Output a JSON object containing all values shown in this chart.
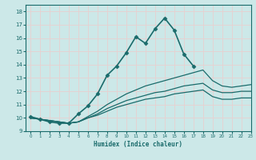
{
  "xlabel": "Humidex (Indice chaleur)",
  "bg_color": "#cce8e8",
  "grid_color": "#e8d0d0",
  "line_color": "#1a6b6b",
  "xlim": [
    -0.5,
    23
  ],
  "ylim": [
    9,
    18.5
  ],
  "xticks": [
    0,
    1,
    2,
    3,
    4,
    5,
    6,
    7,
    8,
    9,
    10,
    11,
    12,
    13,
    14,
    15,
    16,
    17,
    18,
    19,
    20,
    21,
    22,
    23
  ],
  "yticks": [
    9,
    10,
    11,
    12,
    13,
    14,
    15,
    16,
    17,
    18
  ],
  "series": [
    {
      "x": [
        0,
        1,
        2,
        3,
        4,
        5,
        6,
        7,
        8,
        9,
        10,
        11,
        12,
        13,
        14,
        15,
        16,
        17
      ],
      "y": [
        10.1,
        9.9,
        9.7,
        9.6,
        9.6,
        10.3,
        10.9,
        11.8,
        13.2,
        13.9,
        14.9,
        16.1,
        15.6,
        16.7,
        17.5,
        16.6,
        14.8,
        13.9
      ],
      "marker": "D",
      "markersize": 2.5,
      "linewidth": 1.2
    },
    {
      "x": [
        0,
        3,
        4,
        5,
        6,
        7,
        8,
        9,
        10,
        11,
        12,
        13,
        14,
        15,
        16,
        17,
        18,
        19,
        20,
        21,
        22,
        23
      ],
      "y": [
        10.0,
        9.7,
        9.6,
        9.7,
        10.1,
        10.5,
        11.0,
        11.4,
        11.8,
        12.1,
        12.4,
        12.6,
        12.8,
        13.0,
        13.2,
        13.4,
        13.6,
        12.8,
        12.4,
        12.3,
        12.4,
        12.5
      ],
      "marker": null,
      "markersize": 0,
      "linewidth": 0.9
    },
    {
      "x": [
        0,
        3,
        4,
        5,
        6,
        7,
        8,
        9,
        10,
        11,
        12,
        13,
        14,
        15,
        16,
        17,
        18,
        19,
        20,
        21,
        22,
        23
      ],
      "y": [
        10.0,
        9.7,
        9.6,
        9.7,
        10.0,
        10.3,
        10.7,
        11.0,
        11.3,
        11.5,
        11.7,
        11.9,
        12.0,
        12.2,
        12.4,
        12.5,
        12.6,
        12.1,
        11.9,
        11.9,
        12.0,
        12.0
      ],
      "marker": null,
      "markersize": 0,
      "linewidth": 0.9
    },
    {
      "x": [
        0,
        3,
        4,
        5,
        6,
        7,
        8,
        9,
        10,
        11,
        12,
        13,
        14,
        15,
        16,
        17,
        18,
        19,
        20,
        21,
        22,
        23
      ],
      "y": [
        10.0,
        9.7,
        9.6,
        9.7,
        10.0,
        10.2,
        10.5,
        10.8,
        11.0,
        11.2,
        11.4,
        11.5,
        11.6,
        11.8,
        11.9,
        12.0,
        12.1,
        11.6,
        11.4,
        11.4,
        11.5,
        11.5
      ],
      "marker": null,
      "markersize": 0,
      "linewidth": 0.9
    }
  ]
}
